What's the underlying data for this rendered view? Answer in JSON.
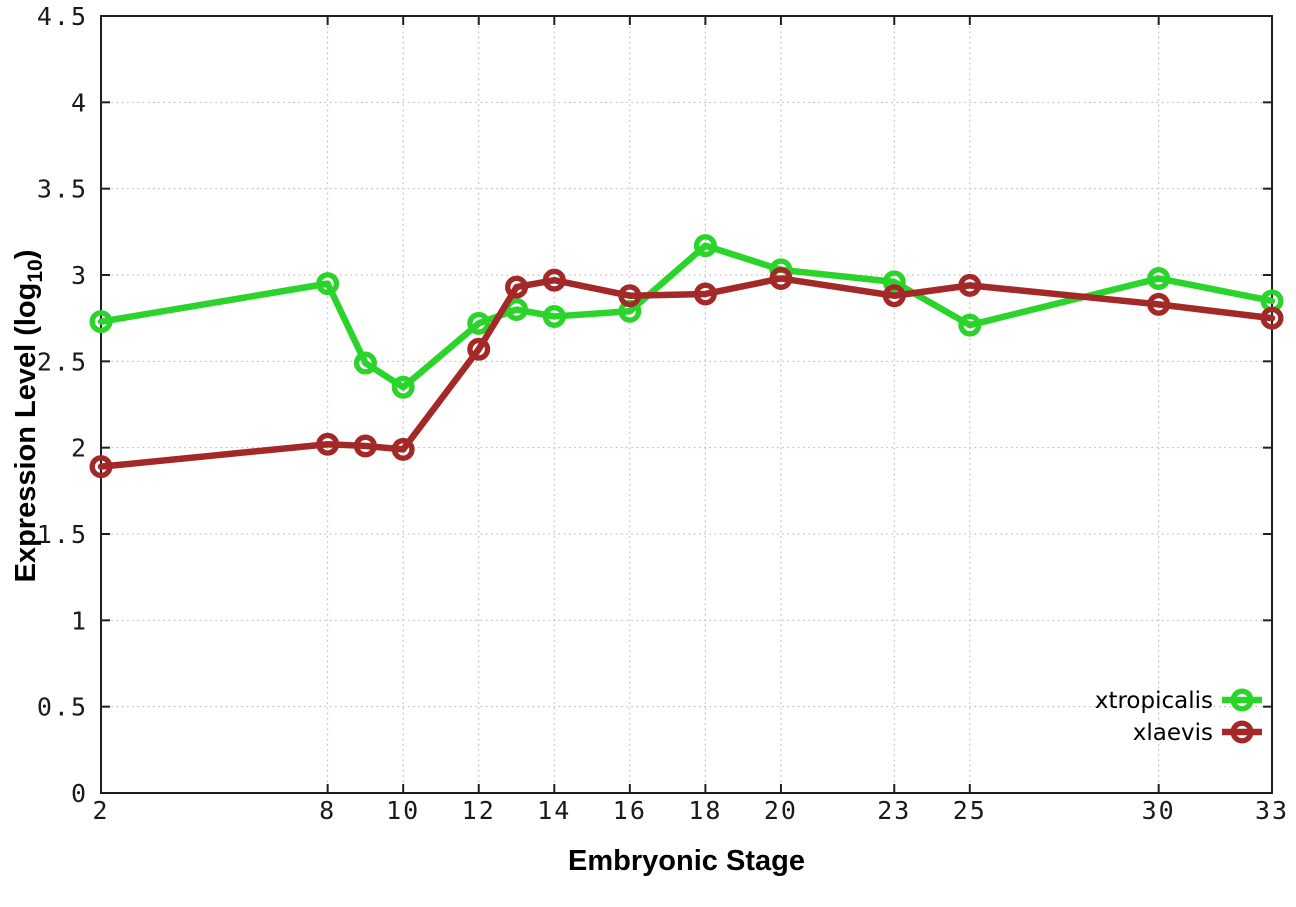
{
  "chart_data": {
    "type": "line",
    "title": "",
    "xlabel": "Embryonic Stage",
    "ylabel": {
      "prefix": "Expression Level (log",
      "subscript": "10",
      "suffix": ")"
    },
    "xlim": [
      2,
      33
    ],
    "ylim": [
      0,
      4.5
    ],
    "grid": true,
    "legend_position": "bottom-right-inside",
    "x": [
      2,
      8,
      9,
      10,
      12,
      13,
      14,
      16,
      18,
      20,
      23,
      25,
      30,
      33
    ],
    "x_ticks": {
      "values": [
        2,
        8,
        10,
        12,
        14,
        16,
        18,
        20,
        23,
        25,
        30,
        33
      ],
      "labels": [
        "2",
        "8",
        "10",
        "12",
        "14",
        "16",
        "18",
        "20",
        "23",
        "25",
        "30",
        "33"
      ]
    },
    "y_ticks": {
      "values": [
        0,
        0.5,
        1,
        1.5,
        2,
        2.5,
        3,
        3.5,
        4,
        4.5
      ],
      "labels": [
        "0",
        "0.5",
        "1",
        "1.5",
        "2",
        "2.5",
        "3",
        "3.5",
        "4",
        "4.5"
      ]
    },
    "series": [
      {
        "name": "xtropicalis",
        "color": "#2bd42b",
        "marker": "open-circle",
        "values": [
          2.73,
          2.95,
          2.49,
          2.35,
          2.72,
          2.8,
          2.76,
          2.79,
          3.17,
          3.03,
          2.96,
          2.71,
          2.98,
          2.85
        ]
      },
      {
        "name": "xlaevis",
        "color": "#a32929",
        "marker": "open-circle",
        "values": [
          1.89,
          2.02,
          2.01,
          1.99,
          2.57,
          2.93,
          2.97,
          2.88,
          2.89,
          2.98,
          2.88,
          2.94,
          2.83,
          2.75
        ]
      }
    ]
  },
  "style": {
    "background": "#ffffff",
    "border_color": "#1f1f1f",
    "grid_color": "#b3b3b3",
    "tick_label_color": "#1a1a1a",
    "legend_text_color": "#000000"
  }
}
